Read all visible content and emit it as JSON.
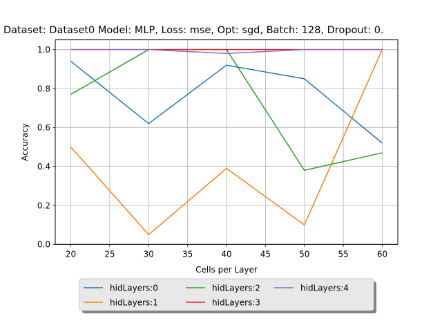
{
  "chart_data": {
    "type": "line",
    "title": "Dataset: Dataset0 Model: MLP, Loss: mse, Opt: sgd, Batch: 128, Dropout: 0.",
    "xlabel": "Cells per Layer",
    "ylabel": "Accuracy",
    "xlim": [
      18,
      62
    ],
    "ylim": [
      0.0,
      1.05
    ],
    "xticks": [
      20,
      25,
      30,
      35,
      40,
      45,
      50,
      55,
      60
    ],
    "yticks": [
      0.0,
      0.2,
      0.4,
      0.6,
      0.8,
      1.0
    ],
    "xtick_labels": [
      "20",
      "25",
      "30",
      "35",
      "40",
      "45",
      "50",
      "55",
      "60"
    ],
    "ytick_labels": [
      "0.0",
      "0.2",
      "0.4",
      "0.6",
      "0.8",
      "1.0"
    ],
    "grid": true,
    "legend_placement": "bottom-center, below plot, 3 columns",
    "x": [
      20,
      30,
      40,
      50,
      60
    ],
    "series": [
      {
        "name": "hidLayers:0",
        "color": "#1f77b4",
        "values": [
          0.94,
          0.62,
          0.92,
          0.85,
          0.52
        ]
      },
      {
        "name": "hidLayers:1",
        "color": "#ff7f0e",
        "values": [
          0.5,
          0.05,
          0.39,
          0.1,
          1.0
        ]
      },
      {
        "name": "hidLayers:2",
        "color": "#2ca02c",
        "values": [
          0.77,
          1.0,
          1.0,
          0.38,
          0.47
        ]
      },
      {
        "name": "hidLayers:3",
        "color": "#d62728",
        "values": [
          1.0,
          1.0,
          1.0,
          1.0,
          1.0
        ]
      },
      {
        "name": "hidLayers:4",
        "color": "#9467bd",
        "values": [
          1.0,
          1.0,
          0.98,
          1.0,
          1.0
        ]
      }
    ]
  }
}
